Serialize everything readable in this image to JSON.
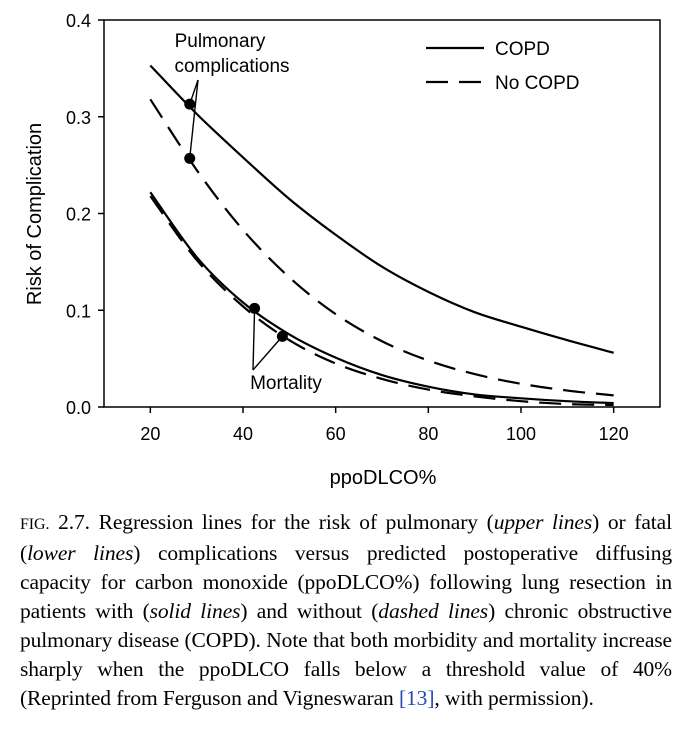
{
  "chart_data": {
    "type": "line",
    "xlabel": "ppoDLCO%",
    "ylabel": "Risk of Complication",
    "xlim": [
      10,
      130
    ],
    "ylim": [
      0.0,
      0.4
    ],
    "xticks": [
      20,
      40,
      60,
      80,
      100,
      120
    ],
    "yticks": [
      0.0,
      0.1,
      0.2,
      0.3,
      0.4
    ],
    "xtick_labels": [
      "20",
      "40",
      "60",
      "80",
      "100",
      "120"
    ],
    "ytick_labels": [
      "0.0",
      "0.1",
      "0.2",
      "0.3",
      "0.4"
    ],
    "grid": false,
    "legend": "top-right",
    "legend_entries": [
      {
        "label": "COPD",
        "style": "solid"
      },
      {
        "label": "No COPD",
        "style": "dashed"
      }
    ],
    "x": [
      20,
      30,
      40,
      50,
      60,
      70,
      80,
      90,
      100,
      110,
      120
    ],
    "series": [
      {
        "name": "COPD",
        "group": "Pulmonary complications",
        "style": "solid",
        "values": [
          0.353,
          0.303,
          0.258,
          0.215,
          0.178,
          0.145,
          0.119,
          0.098,
          0.083,
          0.069,
          0.056
        ]
      },
      {
        "name": "No COPD",
        "group": "Pulmonary complications",
        "style": "dashed",
        "values": [
          0.318,
          0.245,
          0.183,
          0.134,
          0.096,
          0.068,
          0.048,
          0.034,
          0.024,
          0.017,
          0.012
        ]
      },
      {
        "name": "COPD",
        "group": "Mortality",
        "style": "solid",
        "values": [
          0.222,
          0.155,
          0.108,
          0.075,
          0.051,
          0.033,
          0.021,
          0.013,
          0.009,
          0.006,
          0.004
        ]
      },
      {
        "name": "No COPD",
        "group": "Mortality",
        "style": "dashed",
        "values": [
          0.218,
          0.152,
          0.104,
          0.069,
          0.045,
          0.029,
          0.018,
          0.011,
          0.006,
          0.003,
          0.002
        ]
      }
    ],
    "markers": [
      {
        "x": 28.5,
        "y": 0.313
      },
      {
        "x": 28.5,
        "y": 0.257
      },
      {
        "x": 42.5,
        "y": 0.102
      },
      {
        "x": 48.5,
        "y": 0.073
      }
    ],
    "annotations": [
      {
        "text": [
          "Pulmonary",
          "complications"
        ],
        "points": [
          0,
          1
        ]
      },
      {
        "text": [
          "Mortality"
        ],
        "points": [
          2,
          3
        ]
      }
    ]
  },
  "caption": {
    "fig_label": "Fig.",
    "fig_number": "2.7.",
    "t1": " Regression lines for the risk of pulmonary (",
    "i1": "upper lines",
    "t2": ") or fatal (",
    "i2": "lower lines",
    "t3": ") complications versus predicted postoperative diffusing capacity for carbon monoxide (ppoDLCO%) following lung resection in patients with (",
    "i3": "solid lines",
    "t4": ") and without (",
    "i4": "dashed lines",
    "t5": ") chronic obstructive pulmonary disease (COPD). Note that both morbidity and mortality increase sharply when the ppoDLCO falls below a threshold value of 40% (Reprinted from Ferguson and Vigneswaran ",
    "ref": "[13]",
    "t6": ", with permission)."
  }
}
